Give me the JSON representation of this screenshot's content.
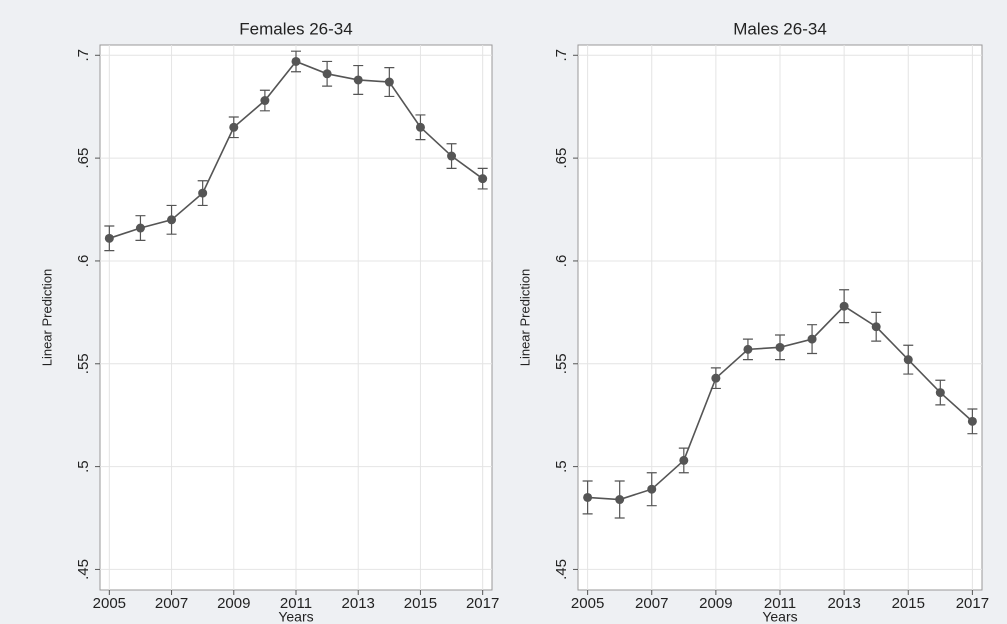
{
  "chart_data": [
    {
      "type": "line",
      "title": "Females 26-34",
      "y_label": "Linear Prediction",
      "x_label": "Years",
      "x": [
        2005,
        2006,
        2007,
        2008,
        2009,
        2010,
        2011,
        2012,
        2013,
        2014,
        2015,
        2016,
        2017
      ],
      "series": [
        {
          "name": "Linear Prediction",
          "color": "#555555",
          "values": [
            0.611,
            0.616,
            0.62,
            0.633,
            0.665,
            0.678,
            0.697,
            0.691,
            0.688,
            0.687,
            0.665,
            0.651,
            0.64
          ],
          "errors": [
            0.006,
            0.006,
            0.007,
            0.006,
            0.005,
            0.005,
            0.005,
            0.006,
            0.007,
            0.007,
            0.006,
            0.006,
            0.005
          ]
        }
      ],
      "xlim": [
        2004.7,
        2017.3
      ],
      "xticks": [
        2005,
        2007,
        2009,
        2011,
        2013,
        2015,
        2017
      ],
      "ylim": [
        0.44,
        0.705
      ],
      "yticks": [
        {
          "value": 0.45,
          "label": ".45"
        },
        {
          "value": 0.5,
          "label": ".5"
        },
        {
          "value": 0.55,
          "label": ".55"
        },
        {
          "value": 0.6,
          "label": ".6"
        },
        {
          "value": 0.65,
          "label": ".65"
        },
        {
          "value": 0.7,
          "label": ".7"
        }
      ],
      "grid": true
    },
    {
      "type": "line",
      "title": "Males 26-34",
      "y_label": "Linear Prediction",
      "x_label": "Years",
      "x": [
        2005,
        2006,
        2007,
        2008,
        2009,
        2010,
        2011,
        2012,
        2013,
        2014,
        2015,
        2016,
        2017
      ],
      "series": [
        {
          "name": "Linear Prediction",
          "color": "#555555",
          "values": [
            0.485,
            0.484,
            0.489,
            0.503,
            0.543,
            0.557,
            0.558,
            0.562,
            0.578,
            0.568,
            0.552,
            0.536,
            0.522
          ],
          "errors": [
            0.008,
            0.009,
            0.008,
            0.006,
            0.005,
            0.005,
            0.006,
            0.007,
            0.008,
            0.007,
            0.007,
            0.006,
            0.006
          ]
        }
      ],
      "xlim": [
        2004.7,
        2017.3
      ],
      "xticks": [
        2005,
        2007,
        2009,
        2011,
        2013,
        2015,
        2017
      ],
      "ylim": [
        0.44,
        0.705
      ],
      "yticks": [
        {
          "value": 0.45,
          "label": ".45"
        },
        {
          "value": 0.5,
          "label": ".5"
        },
        {
          "value": 0.55,
          "label": ".55"
        },
        {
          "value": 0.6,
          "label": ".6"
        },
        {
          "value": 0.65,
          "label": ".65"
        },
        {
          "value": 0.7,
          "label": ".7"
        }
      ],
      "grid": true
    }
  ]
}
